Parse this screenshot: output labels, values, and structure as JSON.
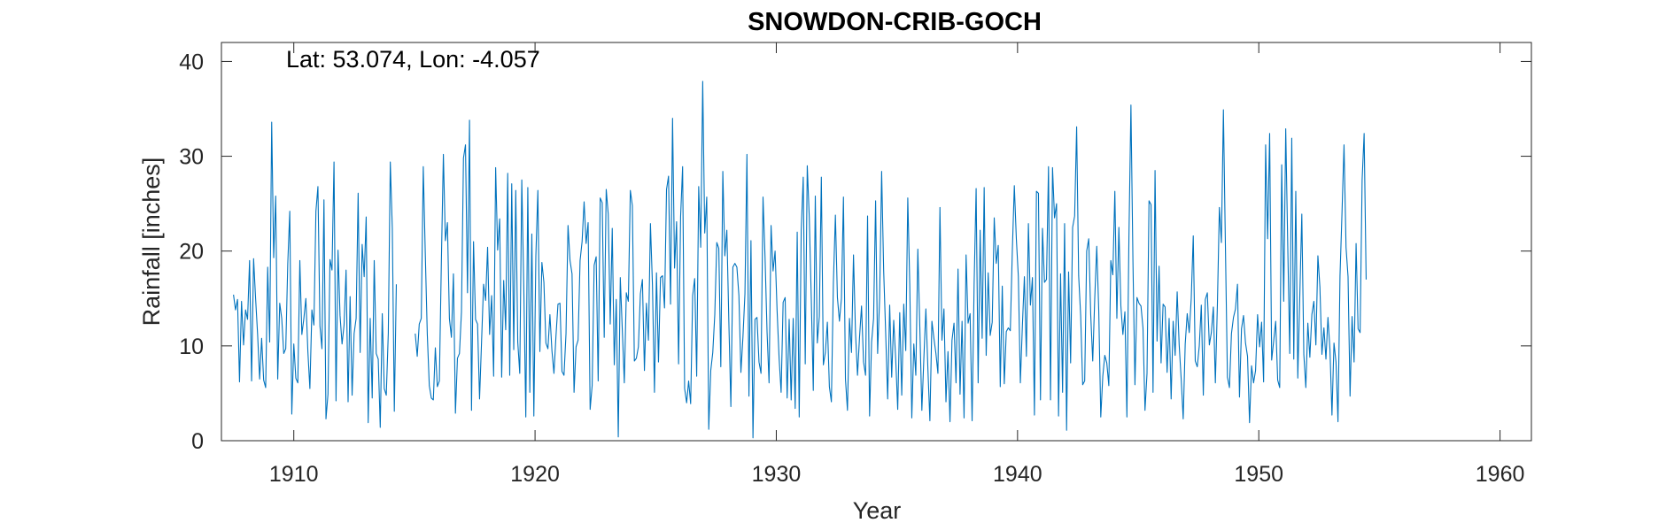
{
  "chart_data": {
    "type": "line",
    "title": "SNOWDON-CRIB-GOCH",
    "annotation": "Lat: 53.074, Lon: -4.057",
    "xlabel": "Year",
    "ylabel": "Rainfall [inches]",
    "xlim": [
      1907,
      1961.3
    ],
    "ylim": [
      0,
      42
    ],
    "x_ticks": [
      1910,
      1920,
      1930,
      1940,
      1950,
      1960
    ],
    "y_ticks": [
      0,
      10,
      20,
      30,
      40
    ],
    "x_tick_labels": [
      "1910",
      "1920",
      "1930",
      "1940",
      "1950",
      "1960"
    ],
    "y_tick_labels": [
      "0",
      "10",
      "20",
      "30",
      "40"
    ],
    "grid": false,
    "line_color": "#0072BD",
    "series": [
      {
        "x_start": 1907.5,
        "x_step": 0.0833333,
        "gaps": [
          [
            1914.3,
            1915.0
          ]
        ],
        "values": [
          15.4,
          13.8,
          14.9,
          6.2,
          14.7,
          10.1,
          13.8,
          12.8,
          19.0,
          6.3,
          19.2,
          15.0,
          11.2,
          6.5,
          10.8,
          6.4,
          5.6,
          18.3,
          10.4,
          33.6,
          19.3,
          25.8,
          6.5,
          14.5,
          12.9,
          9.2,
          9.7,
          18.7,
          24.2,
          2.8,
          10.2,
          6.6,
          6.1,
          19.0,
          11.2,
          12.9,
          15.0,
          9.4,
          5.5,
          13.8,
          12.2,
          24.2,
          26.8,
          12.1,
          9.7,
          25.4,
          2.3,
          4.9,
          19.1,
          18.0,
          29.4,
          4.2,
          20.1,
          13.2,
          10.2,
          12.2,
          18.0,
          4.1,
          15.2,
          4.8,
          11.3,
          12.9,
          26.1,
          9.3,
          20.7,
          17.3,
          23.6,
          1.9,
          12.9,
          4.5,
          19.0,
          9.2,
          8.6,
          1.4,
          13.4,
          5.5,
          4.8,
          11.3,
          29.4,
          22.4,
          3.1,
          16.5,
          11.3,
          8.9,
          12.3,
          12.9,
          28.9,
          19.7,
          11.2,
          5.8,
          4.5,
          4.3,
          9.8,
          5.7,
          6.3,
          18.9,
          30.2,
          21.1,
          23.0,
          12.9,
          10.9,
          17.6,
          2.9,
          8.7,
          9.2,
          13.6,
          29.8,
          31.2,
          15.6,
          33.8,
          3.2,
          21.0,
          12.8,
          12.3,
          4.4,
          10.5,
          16.5,
          14.8,
          20.4,
          11.2,
          15.3,
          6.8,
          28.8,
          20.1,
          23.4,
          6.7,
          16.9,
          11.7,
          28.2,
          6.9,
          27.1,
          9.6,
          26.4,
          10.4,
          7.1,
          27.5,
          16.2,
          2.5,
          26.7,
          5.1,
          21.8,
          2.6,
          19.5,
          26.4,
          9.4,
          18.8,
          16.7,
          10.3,
          9.7,
          13.3,
          9.5,
          7.1,
          11.0,
          14.4,
          14.5,
          7.3,
          6.9,
          11.3,
          22.7,
          19.0,
          17.6,
          5.1,
          9.9,
          10.6,
          19.0,
          21.0,
          25.2,
          20.8,
          23.0,
          3.3,
          5.8,
          18.5,
          19.4,
          6.3,
          25.6,
          25.1,
          10.9,
          26.5,
          23.9,
          12.3,
          22.4,
          8.0,
          14.9,
          0.4,
          17.2,
          11.7,
          6.1,
          15.6,
          14.7,
          26.4,
          24.8,
          8.4,
          8.7,
          9.9,
          15.5,
          17.0,
          7.4,
          14.5,
          10.6,
          22.9,
          16.4,
          5.1,
          17.7,
          8.3,
          17.2,
          17.4,
          14.0,
          26.5,
          27.9,
          14.4,
          34.0,
          18.2,
          23.1,
          8.1,
          23.6,
          28.9,
          5.5,
          4.0,
          6.3,
          3.9,
          15.3,
          17.1,
          6.8,
          26.8,
          20.4,
          37.9,
          21.9,
          25.7,
          1.2,
          7.4,
          9.3,
          13.3,
          20.9,
          20.3,
          7.8,
          28.4,
          19.5,
          22.2,
          12.5,
          3.6,
          18.3,
          18.7,
          18.3,
          15.3,
          7.2,
          10.9,
          15.5,
          30.2,
          4.7,
          21.1,
          0.3,
          12.8,
          13.0,
          8.3,
          7.1,
          25.7,
          19.4,
          11.5,
          6.1,
          22.7,
          17.9,
          20.0,
          13.7,
          8.7,
          5.1,
          14.6,
          15.1,
          4.5,
          12.8,
          4.3,
          12.9,
          3.4,
          22.0,
          2.5,
          22.2,
          27.8,
          8.1,
          29.0,
          23.6,
          15.0,
          5.3,
          25.8,
          10.3,
          13.1,
          27.8,
          8.0,
          9.3,
          12.5,
          5.7,
          4.1,
          16.7,
          23.8,
          15.1,
          12.6,
          15.0,
          25.7,
          6.5,
          3.2,
          12.9,
          9.3,
          19.6,
          11.4,
          6.9,
          10.9,
          14.2,
          8.3,
          6.9,
          23.7,
          2.6,
          10.4,
          12.9,
          25.3,
          9.2,
          15.0,
          28.4,
          18.0,
          11.4,
          4.4,
          14.3,
          6.7,
          12.7,
          8.6,
          3.3,
          13.5,
          4.8,
          14.4,
          9.5,
          25.6,
          16.4,
          2.4,
          10.2,
          6.9,
          20.2,
          11.9,
          3.2,
          8.7,
          13.9,
          7.6,
          2.1,
          12.6,
          10.8,
          9.2,
          7.1,
          24.6,
          10.6,
          13.9,
          4.1,
          9.4,
          2.0,
          10.6,
          12.4,
          6.1,
          18.1,
          4.9,
          12.6,
          2.4,
          19.6,
          12.4,
          13.4,
          2.1,
          16.5,
          26.6,
          6.1,
          22.2,
          10.8,
          26.7,
          9.0,
          17.7,
          11.1,
          12.5,
          23.5,
          18.7,
          20.6,
          5.7,
          16.3,
          6.0,
          11.5,
          11.9,
          11.6,
          20.0,
          26.9,
          21.3,
          17.3,
          6.1,
          12.1,
          17.3,
          8.9,
          22.9,
          14.3,
          17.2,
          2.7,
          26.3,
          26.1,
          4.3,
          22.4,
          16.7,
          17.0,
          28.9,
          4.3,
          28.8,
          23.5,
          25.0,
          2.6,
          17.6,
          5.1,
          22.9,
          1.1,
          17.8,
          8.2,
          22.5,
          23.7,
          33.1,
          17.4,
          13.2,
          5.9,
          6.3,
          20.0,
          21.3,
          13.3,
          8.4,
          15.0,
          20.5,
          13.7,
          2.5,
          6.8,
          9.0,
          8.2,
          5.8,
          19.0,
          17.5,
          26.3,
          12.9,
          22.5,
          14.2,
          11.2,
          13.6,
          2.5,
          21.4,
          35.4,
          18.9,
          5.9,
          15.1,
          14.5,
          14.2,
          11.9,
          3.2,
          7.1,
          25.3,
          24.9,
          5.1,
          28.5,
          10.5,
          18.4,
          8.2,
          14.4,
          14.1,
          7.2,
          12.9,
          4.4,
          12.6,
          9.0,
          15.7,
          10.1,
          6.5,
          2.3,
          10.2,
          13.4,
          11.4,
          15.0,
          21.6,
          8.4,
          7.8,
          10.0,
          14.3,
          4.8,
          14.9,
          15.6,
          10.1,
          11.4,
          14.1,
          6.1,
          14.3,
          24.6,
          20.9,
          34.9,
          20.4,
          6.7,
          5.6,
          11.3,
          13.0,
          13.9,
          16.5,
          4.6,
          11.8,
          13.2,
          10.3,
          8.9,
          1.9,
          7.9,
          6.1,
          7.4,
          13.3,
          9.9,
          12.5,
          6.2,
          31.2,
          21.3,
          32.4,
          8.5,
          10.5,
          12.6,
          6.4,
          5.6,
          29.1,
          14.7,
          32.9,
          20.6,
          9.2,
          31.9,
          8.6,
          26.3,
          6.6,
          15.3,
          23.9,
          9.1,
          5.6,
          12.4,
          8.8,
          13.3,
          14.7,
          10.1,
          19.5,
          16.2,
          9.1,
          11.9,
          8.6,
          13.0,
          9.6,
          2.7,
          10.3,
          8.3,
          2.0,
          17.4,
          24.1,
          31.2,
          20.4,
          17.3,
          4.7,
          13.1,
          8.3,
          20.8,
          11.8,
          11.4,
          27.5,
          32.4,
          17.0
        ]
      }
    ]
  }
}
